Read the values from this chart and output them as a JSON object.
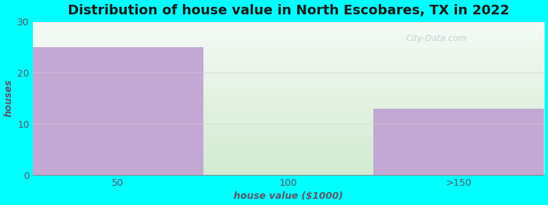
{
  "title": "Distribution of house value in North Escobares, TX in 2022",
  "categories": [
    "50",
    "100",
    ">150"
  ],
  "values": [
    25,
    0,
    13
  ],
  "bar_colors": [
    "#c4a8d4",
    "#d4ecc4",
    "#c4a8d4"
  ],
  "xlabel": "house value ($1000)",
  "ylabel": "houses",
  "ylim": [
    0,
    30
  ],
  "yticks": [
    0,
    10,
    20,
    30
  ],
  "background_color": "#00FFFF",
  "plot_bg_top": "#f5f5f0",
  "plot_bg_bottom": "#d8f0d8",
  "title_fontsize": 14,
  "axis_label_fontsize": 10,
  "tick_fontsize": 10,
  "axis_label_color": "#5a5a6a",
  "tick_color": "#5a5a6a",
  "watermark": "City-Data.com",
  "bar_width": 1.0,
  "positions": [
    0.5,
    1.5,
    2.5
  ],
  "xlim": [
    0,
    3
  ]
}
